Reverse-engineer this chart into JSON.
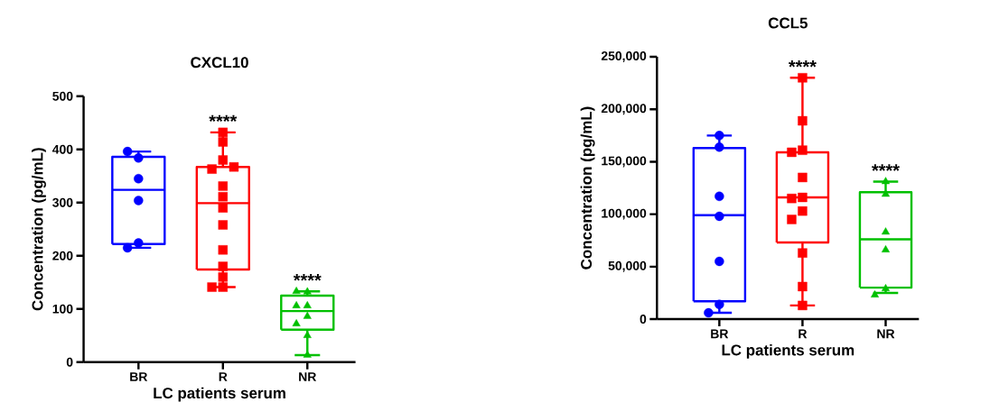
{
  "chart_data": [
    {
      "type": "box",
      "title": "CXCL10",
      "xlabel": "LC patients serum",
      "ylabel": "Concentration (pg/mL)",
      "categories": [
        "BR",
        "R",
        "NR"
      ],
      "colors": [
        "#0000ff",
        "#ff0000",
        "#00c000"
      ],
      "ylim": [
        0,
        500
      ],
      "yticks": [
        0,
        100,
        200,
        300,
        400,
        500
      ],
      "boxes": [
        {
          "low": 215,
          "q1": 222,
          "median": 324,
          "q3": 386,
          "high": 396
        },
        {
          "low": 141,
          "q1": 174,
          "median": 299,
          "q3": 367,
          "high": 432
        },
        {
          "low": 13,
          "q1": 61,
          "median": 96,
          "q3": 125,
          "high": 133
        }
      ],
      "series": [
        {
          "type": "scatter",
          "color": "#0000ff",
          "marker": "circle",
          "x": [
            "BR",
            "BR",
            "BR",
            "BR",
            "BR",
            "BR"
          ],
          "values": [
            384,
            396,
            345,
            304,
            224,
            215
          ]
        },
        {
          "type": "scatter",
          "color": "#ff0000",
          "marker": "square",
          "x": [
            "R",
            "R",
            "R",
            "R",
            "R",
            "R",
            "R",
            "R",
            "R",
            "R",
            "R",
            "R",
            "R",
            "R"
          ],
          "values": [
            432,
            414,
            380,
            363,
            367,
            311,
            331,
            290,
            258,
            211,
            180,
            160,
            141,
            141
          ]
        },
        {
          "type": "scatter",
          "color": "#00c000",
          "marker": "triangle",
          "x": [
            "NR",
            "NR",
            "NR",
            "NR",
            "NR",
            "NR",
            "NR",
            "NR"
          ],
          "values": [
            132,
            133,
            106,
            106,
            86,
            72,
            50,
            13
          ]
        }
      ],
      "annotations": [
        "****",
        "****"
      ]
    },
    {
      "type": "box",
      "title": "CCL5",
      "xlabel": "LC patients serum",
      "ylabel": "Concentration (pg/mL)",
      "categories": [
        "BR",
        "R",
        "NR"
      ],
      "colors": [
        "#0000ff",
        "#ff0000",
        "#00c000"
      ],
      "ylim": [
        0,
        250000
      ],
      "yticks": [
        0,
        {
          "value": 50000,
          "label": "50,000"
        },
        {
          "value": 100000,
          "label": "100,000"
        },
        {
          "value": 150000,
          "label": "150,000"
        },
        {
          "value": 200000,
          "label": "200,000"
        },
        {
          "value": 250000,
          "label": "250,000"
        }
      ],
      "boxes": [
        {
          "low": 6000,
          "q1": 17000,
          "median": 99000,
          "q3": 163000,
          "high": 175000
        },
        {
          "low": 13000,
          "q1": 73000,
          "median": 116000,
          "q3": 159000,
          "high": 230000
        },
        {
          "low": 25000,
          "q1": 30000,
          "median": 76000,
          "q3": 121000,
          "high": 131000
        }
      ],
      "series": [
        {
          "type": "scatter",
          "color": "#0000ff",
          "marker": "circle",
          "x": [
            "BR",
            "BR",
            "BR",
            "BR",
            "BR",
            "BR",
            "BR"
          ],
          "values": [
            175000,
            164000,
            117000,
            98000,
            55000,
            14000,
            6000
          ]
        },
        {
          "type": "scatter",
          "color": "#ff0000",
          "marker": "square",
          "x": [
            "R",
            "R",
            "R",
            "R",
            "R",
            "R",
            "R",
            "R",
            "R",
            "R",
            "R",
            "R"
          ],
          "values": [
            230000,
            189000,
            161000,
            159000,
            135000,
            116000,
            115000,
            103000,
            95000,
            63000,
            31000,
            13000
          ]
        },
        {
          "type": "scatter",
          "color": "#00c000",
          "marker": "triangle",
          "x": [
            "NR",
            "NR",
            "NR",
            "NR",
            "NR",
            "NR"
          ],
          "values": [
            131000,
            119000,
            83000,
            66000,
            29000,
            23000
          ]
        }
      ],
      "annotations": [
        "****",
        "****"
      ]
    }
  ]
}
